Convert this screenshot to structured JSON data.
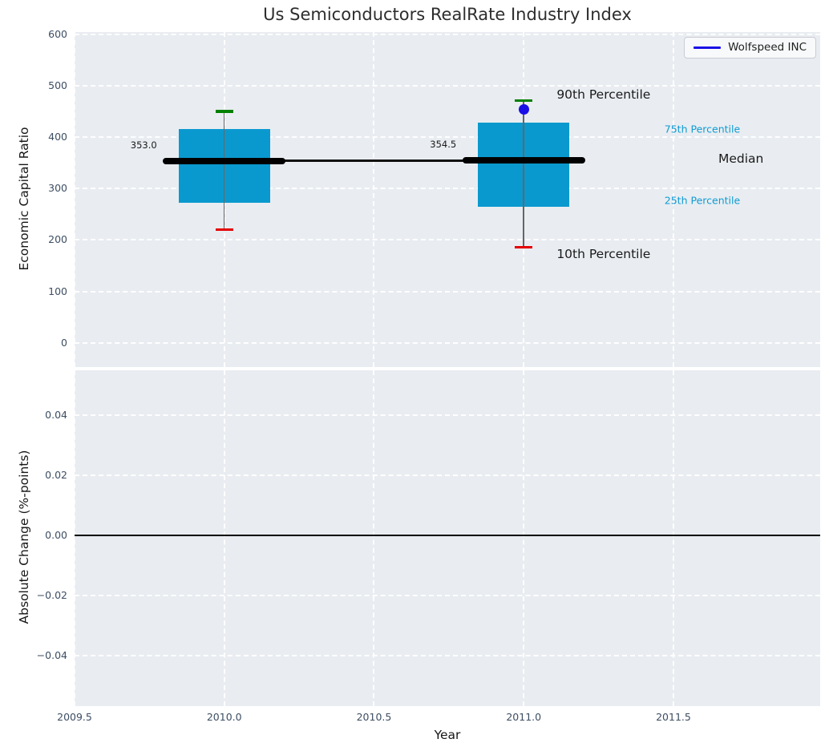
{
  "chart_data": [
    {
      "type": "box",
      "title": "Us Semiconductors RealRate Industry Index",
      "ylabel": "Economic Capital Ratio",
      "xlabel": "",
      "ylim": [
        -47,
        604
      ],
      "xlim": [
        2009.5,
        2011.99
      ],
      "grid": true,
      "legend": {
        "position": "upper right",
        "entries": [
          {
            "label": "Wolfspeed INC",
            "color": "#1a10e6"
          }
        ]
      },
      "yticks": [
        {
          "v": 600,
          "label": "600"
        },
        {
          "v": 500,
          "label": "500"
        },
        {
          "v": 400,
          "label": "400"
        },
        {
          "v": 300,
          "label": "300"
        },
        {
          "v": 200,
          "label": "200"
        },
        {
          "v": 100,
          "label": "100"
        },
        {
          "v": 0,
          "label": "0"
        }
      ],
      "xticks": [
        {
          "v": 2009.5,
          "label": "2009.5"
        },
        {
          "v": 2010.0,
          "label": "2010.0"
        },
        {
          "v": 2010.5,
          "label": "2010.5"
        },
        {
          "v": 2011.0,
          "label": "2011.0"
        },
        {
          "v": 2011.5,
          "label": "2011.5"
        }
      ],
      "box_color": "#0a99cf",
      "whisker_color": "#666666",
      "cap_colors": {
        "p90": "#008000",
        "p10": "#e50000"
      },
      "median_color": "#000000",
      "boxes": [
        {
          "year": 2010,
          "p10": 220,
          "p25": 272,
          "median": 353.0,
          "p75": 415,
          "p90": 450,
          "median_label": "353.0"
        },
        {
          "year": 2011,
          "p10": 186,
          "p25": 264,
          "median": 354.5,
          "p75": 428,
          "p90": 471,
          "median_label": "354.5"
        }
      ],
      "wolfspeed_point": {
        "year": 2011,
        "value": 454,
        "color": "#1a10e6"
      },
      "median_trend": [
        [
          2010,
          353.0
        ],
        [
          2011,
          354.5
        ]
      ],
      "annotations": [
        {
          "text": "90th Percentile",
          "x": 2011.11,
          "y": 483,
          "color": "#1a1a1a",
          "size": 15.5
        },
        {
          "text": "75th Percentile",
          "x": 2011.47,
          "y": 416,
          "color": "#0f9bd3",
          "size": 12.5
        },
        {
          "text": "Median",
          "x": 2011.65,
          "y": 358,
          "color": "#1a1a1a",
          "size": 15.5
        },
        {
          "text": "25th Percentile",
          "x": 2011.47,
          "y": 277,
          "color": "#0f9bd3",
          "size": 12.5
        },
        {
          "text": "10th Percentile",
          "x": 2011.11,
          "y": 173,
          "color": "#1a1a1a",
          "size": 15.5
        }
      ]
    },
    {
      "type": "line",
      "ylabel": "Absolute Change (%-points)",
      "xlabel": "Year",
      "ylim": [
        -0.0568,
        0.0549
      ],
      "grid": true,
      "yticks": [
        {
          "v": 0.04,
          "label": "0.04"
        },
        {
          "v": 0.02,
          "label": "0.02"
        },
        {
          "v": 0,
          "label": "0.00"
        },
        {
          "v": -0.02,
          "label": "−0.02"
        },
        {
          "v": -0.04,
          "label": "−0.04"
        }
      ],
      "xticks": [
        {
          "v": 2009.5,
          "label": "2009.5"
        },
        {
          "v": 2010.0,
          "label": "2010.0"
        },
        {
          "v": 2010.5,
          "label": "2010.5"
        },
        {
          "v": 2011.0,
          "label": "2011.0"
        },
        {
          "v": 2011.5,
          "label": "2011.5"
        }
      ],
      "zero_line": {
        "value": 0.0,
        "color": "#000000"
      },
      "series": []
    }
  ]
}
